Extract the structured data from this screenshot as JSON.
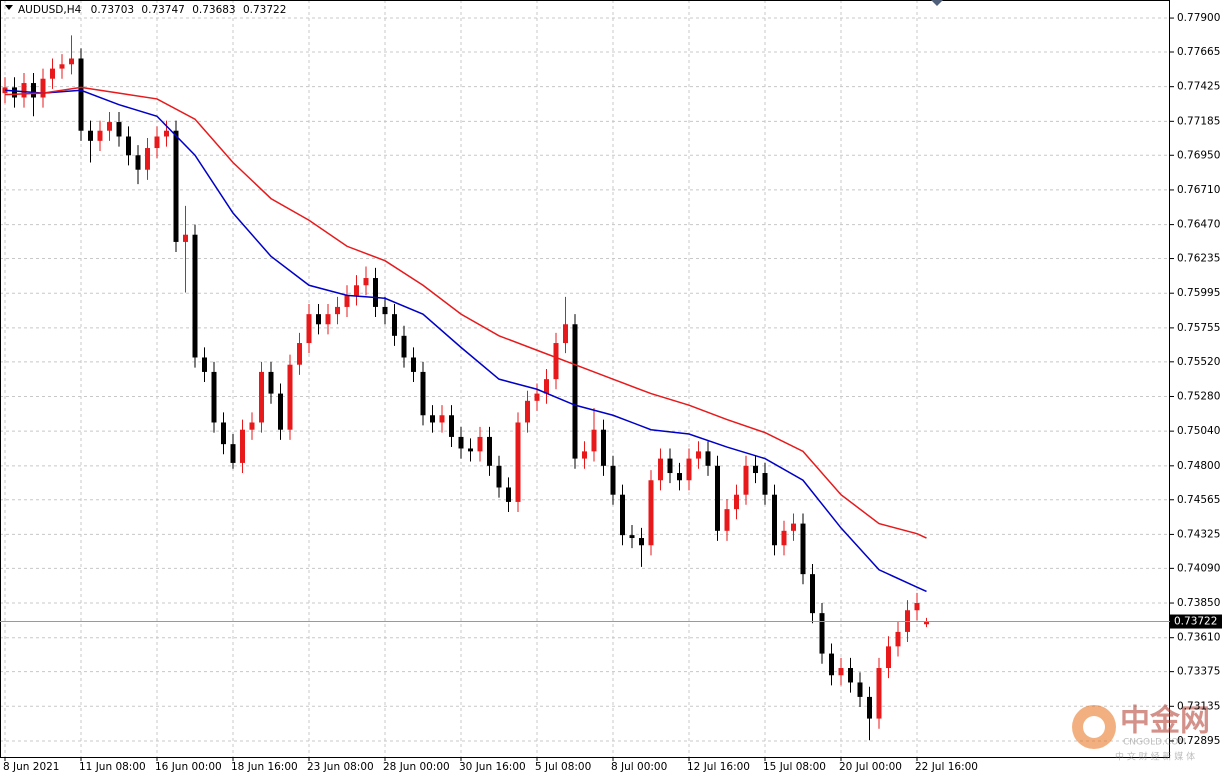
{
  "chart_data": {
    "type": "candlestick",
    "symbol": "AUDUSD,H4",
    "ohlc_display": [
      0.73703,
      0.73747,
      0.73683,
      0.73722
    ],
    "current_price": 0.73722,
    "up_color": "#e8191b",
    "down_color": "#000000",
    "grid": true,
    "categories": [
      "8 Jun 2021",
      null,
      null,
      null,
      null,
      null,
      null,
      null,
      "11 Jun 08:00",
      null,
      null,
      null,
      null,
      null,
      null,
      null,
      "16 Jun 00:00",
      null,
      null,
      null,
      null,
      null,
      null,
      null,
      "18 Jun 16:00",
      null,
      null,
      null,
      null,
      null,
      null,
      null,
      "23 Jun 08:00",
      null,
      null,
      null,
      null,
      null,
      null,
      null,
      "28 Jun 00:00",
      null,
      null,
      null,
      null,
      null,
      null,
      null,
      "30 Jun 16:00",
      null,
      null,
      null,
      null,
      null,
      null,
      null,
      "5 Jul 08:00",
      null,
      null,
      null,
      null,
      null,
      null,
      null,
      "8 Jul 00:00",
      null,
      null,
      null,
      null,
      null,
      null,
      null,
      "12 Jul 16:00",
      null,
      null,
      null,
      null,
      null,
      null,
      null,
      "15 Jul 08:00",
      null,
      null,
      null,
      null,
      null,
      null,
      null,
      "20 Jul 00:00",
      null,
      null,
      null,
      null,
      null,
      null,
      null,
      "22 Jul 16:00",
      null
    ],
    "open": [
      0.7738,
      0.7742,
      0.7735,
      0.7745,
      0.7735,
      0.7748,
      0.7755,
      0.7758,
      0.7762,
      0.7712,
      0.7705,
      0.7712,
      0.7718,
      0.7708,
      0.7695,
      0.7685,
      0.77,
      0.7708,
      0.7712,
      0.7635,
      0.764,
      0.7555,
      0.7545,
      0.751,
      0.7495,
      0.7482,
      0.7505,
      0.751,
      0.7545,
      0.753,
      0.7505,
      0.755,
      0.7565,
      0.7585,
      0.7578,
      0.7585,
      0.759,
      0.7598,
      0.7605,
      0.761,
      0.759,
      0.7585,
      0.757,
      0.7555,
      0.7545,
      0.7515,
      0.751,
      0.7515,
      0.75,
      0.7492,
      0.749,
      0.75,
      0.748,
      0.7465,
      0.7455,
      0.751,
      0.7525,
      0.753,
      0.754,
      0.7565,
      0.7578,
      0.7485,
      0.749,
      0.7505,
      0.748,
      0.746,
      0.7432,
      0.743,
      0.7425,
      0.747,
      0.7485,
      0.7475,
      0.747,
      0.7485,
      0.749,
      0.748,
      0.7435,
      0.745,
      0.746,
      0.748,
      0.7475,
      0.746,
      0.7425,
      0.7435,
      0.744,
      0.7405,
      0.7378,
      0.735,
      0.7335,
      0.734,
      0.733,
      0.732,
      0.7305,
      0.734,
      0.7355,
      0.7365,
      0.738,
      0.73703
    ],
    "high": [
      0.7749,
      0.7749,
      0.7752,
      0.7752,
      0.7755,
      0.7762,
      0.7765,
      0.7778,
      0.7769,
      0.7719,
      0.7719,
      0.7725,
      0.7725,
      0.7715,
      0.7702,
      0.7707,
      0.7715,
      0.7719,
      0.7719,
      0.766,
      0.7647,
      0.7562,
      0.7552,
      0.7517,
      0.7502,
      0.7512,
      0.7517,
      0.7552,
      0.7552,
      0.7537,
      0.7557,
      0.7572,
      0.7592,
      0.7592,
      0.7592,
      0.7597,
      0.7605,
      0.7612,
      0.7618,
      0.7617,
      0.7597,
      0.7592,
      0.7577,
      0.7562,
      0.7552,
      0.7522,
      0.7522,
      0.7522,
      0.7507,
      0.7499,
      0.7507,
      0.7507,
      0.7487,
      0.7472,
      0.7517,
      0.7532,
      0.7537,
      0.7547,
      0.7572,
      0.7597,
      0.7585,
      0.7497,
      0.752,
      0.7512,
      0.7487,
      0.7467,
      0.7439,
      0.7437,
      0.7477,
      0.7492,
      0.7492,
      0.7482,
      0.7492,
      0.7497,
      0.7497,
      0.7487,
      0.7457,
      0.7467,
      0.7487,
      0.7487,
      0.7482,
      0.7467,
      0.7442,
      0.7447,
      0.7447,
      0.7412,
      0.7385,
      0.7357,
      0.7347,
      0.7347,
      0.7337,
      0.7327,
      0.7347,
      0.7362,
      0.7372,
      0.7387,
      0.7392,
      0.73747
    ],
    "low": [
      0.7731,
      0.7728,
      0.7728,
      0.7722,
      0.7728,
      0.7741,
      0.7748,
      0.7751,
      0.7705,
      0.769,
      0.7698,
      0.7705,
      0.7701,
      0.7688,
      0.7675,
      0.7678,
      0.7693,
      0.7701,
      0.7628,
      0.76,
      0.7548,
      0.7538,
      0.7503,
      0.7488,
      0.7478,
      0.7475,
      0.7498,
      0.7503,
      0.7523,
      0.7498,
      0.7498,
      0.7543,
      0.7558,
      0.7571,
      0.7571,
      0.7578,
      0.7583,
      0.7591,
      0.7598,
      0.7583,
      0.7578,
      0.7563,
      0.7548,
      0.7538,
      0.7508,
      0.7503,
      0.7503,
      0.7493,
      0.7485,
      0.7483,
      0.7483,
      0.7473,
      0.7458,
      0.7448,
      0.7448,
      0.7503,
      0.7518,
      0.7523,
      0.7533,
      0.7558,
      0.7478,
      0.7478,
      0.7483,
      0.7473,
      0.7453,
      0.7425,
      0.7423,
      0.741,
      0.7418,
      0.7463,
      0.7468,
      0.7463,
      0.7463,
      0.7478,
      0.7473,
      0.7428,
      0.7428,
      0.7443,
      0.7453,
      0.7468,
      0.7453,
      0.7418,
      0.7418,
      0.7428,
      0.7398,
      0.7371,
      0.7343,
      0.7328,
      0.7328,
      0.7323,
      0.7313,
      0.729,
      0.7298,
      0.7333,
      0.7348,
      0.7358,
      0.7373,
      0.73683
    ],
    "close": [
      0.7742,
      0.7735,
      0.7745,
      0.7735,
      0.7748,
      0.7755,
      0.7758,
      0.7762,
      0.7712,
      0.7705,
      0.7712,
      0.7718,
      0.7708,
      0.7695,
      0.7685,
      0.77,
      0.7708,
      0.7712,
      0.7635,
      0.764,
      0.7555,
      0.7545,
      0.751,
      0.7495,
      0.7482,
      0.7505,
      0.751,
      0.7545,
      0.753,
      0.7505,
      0.755,
      0.7565,
      0.7585,
      0.7578,
      0.7585,
      0.759,
      0.7598,
      0.7605,
      0.761,
      0.759,
      0.7585,
      0.757,
      0.7555,
      0.7545,
      0.7515,
      0.751,
      0.7515,
      0.75,
      0.7492,
      0.749,
      0.75,
      0.748,
      0.7465,
      0.7455,
      0.751,
      0.7525,
      0.753,
      0.754,
      0.7565,
      0.7578,
      0.7485,
      0.749,
      0.7505,
      0.748,
      0.746,
      0.7432,
      0.743,
      0.7425,
      0.747,
      0.7485,
      0.7475,
      0.747,
      0.7485,
      0.749,
      0.748,
      0.7435,
      0.745,
      0.746,
      0.748,
      0.7475,
      0.746,
      0.7425,
      0.7435,
      0.744,
      0.7405,
      0.7378,
      0.735,
      0.7335,
      0.734,
      0.733,
      0.732,
      0.7305,
      0.734,
      0.7355,
      0.7365,
      0.738,
      0.7385,
      0.73722
    ],
    "series": [
      {
        "color": "#0000c8",
        "x": [
          0,
          4,
          8,
          12,
          16,
          20,
          24,
          28,
          32,
          36,
          40,
          44,
          48,
          52,
          56,
          60,
          64,
          68,
          72,
          76,
          80,
          84,
          88,
          92,
          96,
          97
        ],
        "values": [
          0.774,
          0.7738,
          0.774,
          0.773,
          0.7722,
          0.7695,
          0.7655,
          0.7625,
          0.7605,
          0.7598,
          0.7596,
          0.7585,
          0.7562,
          0.754,
          0.7533,
          0.7522,
          0.7515,
          0.7505,
          0.7502,
          0.7493,
          0.7485,
          0.747,
          0.7437,
          0.7408,
          0.7396,
          0.7393
        ]
      },
      {
        "color": "#e8191b",
        "x": [
          0,
          4,
          8,
          12,
          16,
          20,
          24,
          28,
          32,
          36,
          40,
          44,
          48,
          52,
          56,
          60,
          64,
          68,
          72,
          76,
          80,
          84,
          88,
          92,
          96,
          97
        ],
        "values": [
          0.7737,
          0.7738,
          0.7742,
          0.7738,
          0.7734,
          0.772,
          0.769,
          0.7665,
          0.765,
          0.7632,
          0.7622,
          0.7605,
          0.7585,
          0.757,
          0.756,
          0.755,
          0.754,
          0.753,
          0.7522,
          0.7512,
          0.7503,
          0.749,
          0.746,
          0.744,
          0.7433,
          0.743
        ]
      }
    ],
    "ylim": [
      0.72784,
      0.78025
    ],
    "yticks": [
      {
        "value": 0.779,
        "label": "0.77900"
      },
      0.77665,
      0.77425,
      0.77185,
      {
        "value": 0.7695,
        "label": "0.76950"
      },
      {
        "value": 0.7671,
        "label": "0.76710"
      },
      {
        "value": 0.7647,
        "label": "0.76470"
      },
      0.76235,
      0.75995,
      0.75755,
      {
        "value": 0.7552,
        "label": "0.75520"
      },
      {
        "value": 0.7528,
        "label": "0.75280"
      },
      {
        "value": 0.7504,
        "label": "0.75040"
      },
      {
        "value": 0.748,
        "label": "0.74800"
      },
      0.74565,
      0.74325,
      {
        "value": 0.7409,
        "label": "0.74090"
      },
      {
        "value": 0.7385,
        "label": "0.73850"
      },
      {
        "value": 0.7361,
        "label": "0.73610"
      },
      0.73375,
      0.73135,
      0.72895
    ],
    "watermark": {
      "logo": "中金网",
      "site": "CNGOLD.COM",
      "tagline": "中 文 财 经 新 媒 体"
    }
  }
}
